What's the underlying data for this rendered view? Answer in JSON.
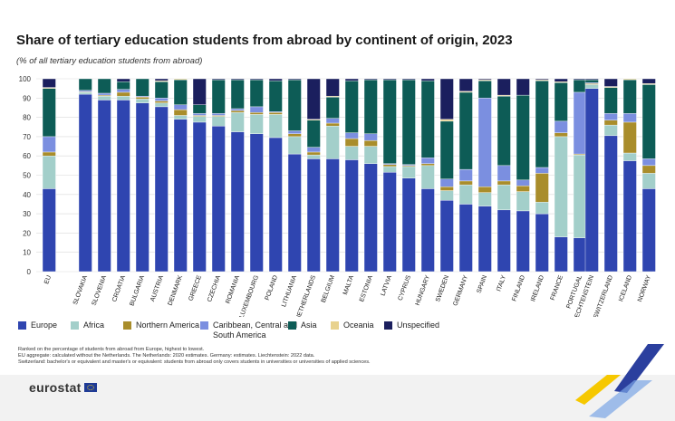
{
  "title": "Share of tertiary education students from abroad by continent of origin, 2023",
  "subtitle": "(% of all tertiary education students from abroad)",
  "legend": [
    {
      "key": "europe",
      "label": "Europe"
    },
    {
      "key": "africa",
      "label": "Africa"
    },
    {
      "key": "northern_america",
      "label": "Northern America"
    },
    {
      "key": "caribbean",
      "label": "Caribbean, Central and South America"
    },
    {
      "key": "asia",
      "label": "Asia"
    },
    {
      "key": "oceania",
      "label": "Oceania"
    },
    {
      "key": "unspecified",
      "label": "Unspecified"
    }
  ],
  "colors": {
    "europe": "#2f45b0",
    "africa": "#a3cfca",
    "northern_america": "#a98d2b",
    "caribbean": "#7b8fe0",
    "asia": "#0d5c56",
    "oceania": "#e8d28e",
    "unspecified": "#1b1f5e"
  },
  "notes": [
    "Ranked on the percentage of students from abroad from Europe, highest to lowest.",
    "EU aggregate: calculated without the Netherlands. The Netherlands: 2020 estimates. Germany: estimates. Liechtenstein: 2022 data.",
    "Switzerland: bachelor's or equivalent and master's or equivalent: students from abroad only covers students in universities or universities of applied sciences."
  ],
  "logo_text": "eurostat",
  "chart_data": {
    "type": "bar",
    "stacked": true,
    "title": "Share of tertiary education students from abroad by continent of origin, 2023",
    "ylabel": "%",
    "ylim": [
      0,
      100
    ],
    "yticks": [
      0,
      10,
      20,
      30,
      40,
      50,
      60,
      70,
      80,
      90,
      100
    ],
    "series_order": [
      "europe",
      "africa",
      "northern_america",
      "caribbean",
      "asia",
      "oceania",
      "unspecified"
    ],
    "categories": [
      {
        "label": "EU",
        "group": 0,
        "values": [
          43,
          17,
          2,
          8,
          25,
          0.5,
          4.5
        ]
      },
      {
        "label": "SLOVAKIA",
        "group": 1,
        "values": [
          92,
          1,
          0.3,
          0.7,
          6,
          0,
          0
        ]
      },
      {
        "label": "SLOVENIA",
        "group": 1,
        "values": [
          89,
          2,
          0.5,
          1,
          7.5,
          0,
          0
        ]
      },
      {
        "label": "CROATIA",
        "group": 1,
        "values": [
          89,
          2,
          2,
          1.5,
          4,
          0,
          1.5
        ]
      },
      {
        "label": "BULGARIA",
        "group": 1,
        "values": [
          87.5,
          2,
          1,
          0.5,
          9,
          0,
          0
        ]
      },
      {
        "label": "AUSTRIA",
        "group": 1,
        "values": [
          85.5,
          2,
          1,
          1.5,
          8.5,
          0.5,
          1
        ]
      },
      {
        "label": "DENMARK",
        "group": 1,
        "values": [
          79,
          2,
          3,
          2.5,
          13,
          0.5,
          0
        ]
      },
      {
        "label": "GREECE",
        "group": 1,
        "values": [
          77.5,
          3,
          0.5,
          1,
          4.5,
          0,
          13.5
        ]
      },
      {
        "label": "CZECHIA",
        "group": 1,
        "values": [
          75.5,
          5,
          0.5,
          1,
          17.5,
          0,
          0.5
        ]
      },
      {
        "label": "ROMANIA",
        "group": 1,
        "values": [
          72.5,
          10,
          1,
          1,
          15,
          0,
          0.5
        ]
      },
      {
        "label": "LUXEMBOURG",
        "group": 1,
        "values": [
          71.5,
          10,
          1,
          3,
          14,
          0,
          0.5
        ]
      },
      {
        "label": "POLAND",
        "group": 1,
        "values": [
          69.5,
          12,
          1,
          0.5,
          16,
          0,
          1
        ]
      },
      {
        "label": "LITHUANIA",
        "group": 1,
        "values": [
          61,
          9,
          1.5,
          1.5,
          26.5,
          0,
          0.5
        ]
      },
      {
        "label": "NETHERLANDS",
        "group": 1,
        "values": [
          58.5,
          2,
          1.5,
          2.5,
          14,
          0.5,
          21
        ]
      },
      {
        "label": "BELGIUM",
        "group": 1,
        "values": [
          58.5,
          17,
          1.5,
          2.5,
          11,
          0.5,
          9
        ]
      },
      {
        "label": "MALTA",
        "group": 1,
        "values": [
          58,
          7,
          4,
          3,
          27,
          0,
          1
        ]
      },
      {
        "label": "ESTONIA",
        "group": 1,
        "values": [
          56,
          9,
          3,
          3.5,
          28,
          0,
          0.5
        ]
      },
      {
        "label": "LATVIA",
        "group": 1,
        "values": [
          51.5,
          3,
          1,
          0.5,
          43.5,
          0,
          0.5
        ]
      },
      {
        "label": "CYPRUS",
        "group": 1,
        "values": [
          48.5,
          6,
          0.5,
          0.5,
          44,
          0,
          0.5
        ]
      },
      {
        "label": "HUNGARY",
        "group": 1,
        "values": [
          43,
          12,
          1,
          3,
          40,
          0,
          1
        ]
      },
      {
        "label": "SWEDEN",
        "group": 1,
        "values": [
          37,
          5,
          2,
          4,
          30,
          1,
          21
        ]
      },
      {
        "label": "GERMANY",
        "group": 1,
        "values": [
          35,
          10,
          2,
          6,
          40,
          0.5,
          6.5
        ]
      },
      {
        "label": "SPAIN",
        "group": 1,
        "values": [
          34,
          7,
          3,
          46,
          9,
          0.5,
          0.5
        ]
      },
      {
        "label": "ITALY",
        "group": 1,
        "values": [
          32,
          13,
          2,
          8,
          36,
          0.5,
          8.5
        ]
      },
      {
        "label": "FINLAND",
        "group": 1,
        "values": [
          31.5,
          10,
          3,
          3,
          44,
          0,
          8.5
        ]
      },
      {
        "label": "IRELAND",
        "group": 1,
        "values": [
          30,
          6,
          15,
          3,
          45,
          0.5,
          0.5
        ]
      },
      {
        "label": "FRANCE",
        "group": 1,
        "values": [
          18,
          52,
          2,
          6,
          20,
          0.5,
          1.5
        ]
      },
      {
        "label": "PORTUGAL",
        "group": 1,
        "values": [
          17.5,
          43,
          0.5,
          32,
          6.5,
          0,
          0.5
        ]
      },
      {
        "label": "LIECHTENSTEIN",
        "group": 2,
        "values": [
          95,
          2,
          0.5,
          0.5,
          1.5,
          0,
          0.5
        ]
      },
      {
        "label": "SWITZERLAND",
        "group": 2,
        "values": [
          70.5,
          5.5,
          2.5,
          3.5,
          13.5,
          0.5,
          4
        ]
      },
      {
        "label": "ICELAND",
        "group": 2,
        "values": [
          57.5,
          4,
          16,
          4.5,
          17.5,
          0.5,
          0
        ]
      },
      {
        "label": "NORWAY",
        "group": 2,
        "values": [
          43,
          8,
          4,
          3.5,
          38.5,
          0.5,
          2.5
        ]
      }
    ]
  }
}
